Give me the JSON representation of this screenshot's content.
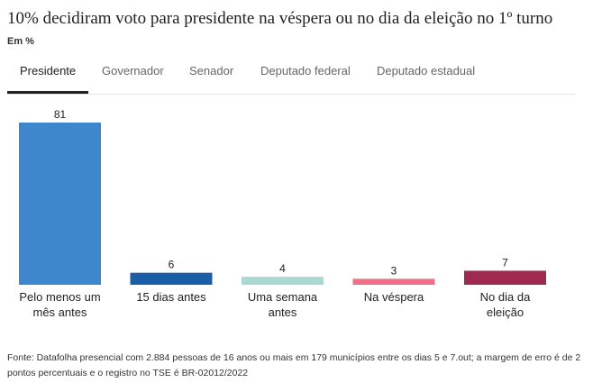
{
  "title": "10% decidiram voto para presidente na véspera ou no dia da eleição no 1º turno",
  "subtitle": "Em %",
  "tabs": [
    {
      "label": "Presidente",
      "active": true
    },
    {
      "label": "Governador",
      "active": false
    },
    {
      "label": "Senador",
      "active": false
    },
    {
      "label": "Deputado federal",
      "active": false
    },
    {
      "label": "Deputado estadual",
      "active": false
    }
  ],
  "source": "Fonte: Datafolha presencial com 2.884 pessoas de 16 anos ou mais em 179 municípios entre os dias 5 e 7.out; a margem de erro é de 2 pontos percentuais e o registro no TSE é BR-02012/2022",
  "chart_data": {
    "type": "bar",
    "title": "10% decidiram voto para presidente na véspera ou no dia da eleição no 1º turno",
    "subtitle": "Em %",
    "categories": [
      [
        "Pelo menos um",
        "mês antes"
      ],
      [
        "15 dias antes"
      ],
      [
        "Uma semana",
        "antes"
      ],
      [
        "Na véspera"
      ],
      [
        "No dia da",
        "eleição"
      ]
    ],
    "values": [
      81,
      6,
      4,
      3,
      7
    ],
    "colors": [
      "#3f87cd",
      "#1a5ea8",
      "#a9d9d2",
      "#f0728a",
      "#9e2a50"
    ],
    "ylim": [
      0,
      81
    ],
    "grid": false,
    "legend": "none"
  }
}
